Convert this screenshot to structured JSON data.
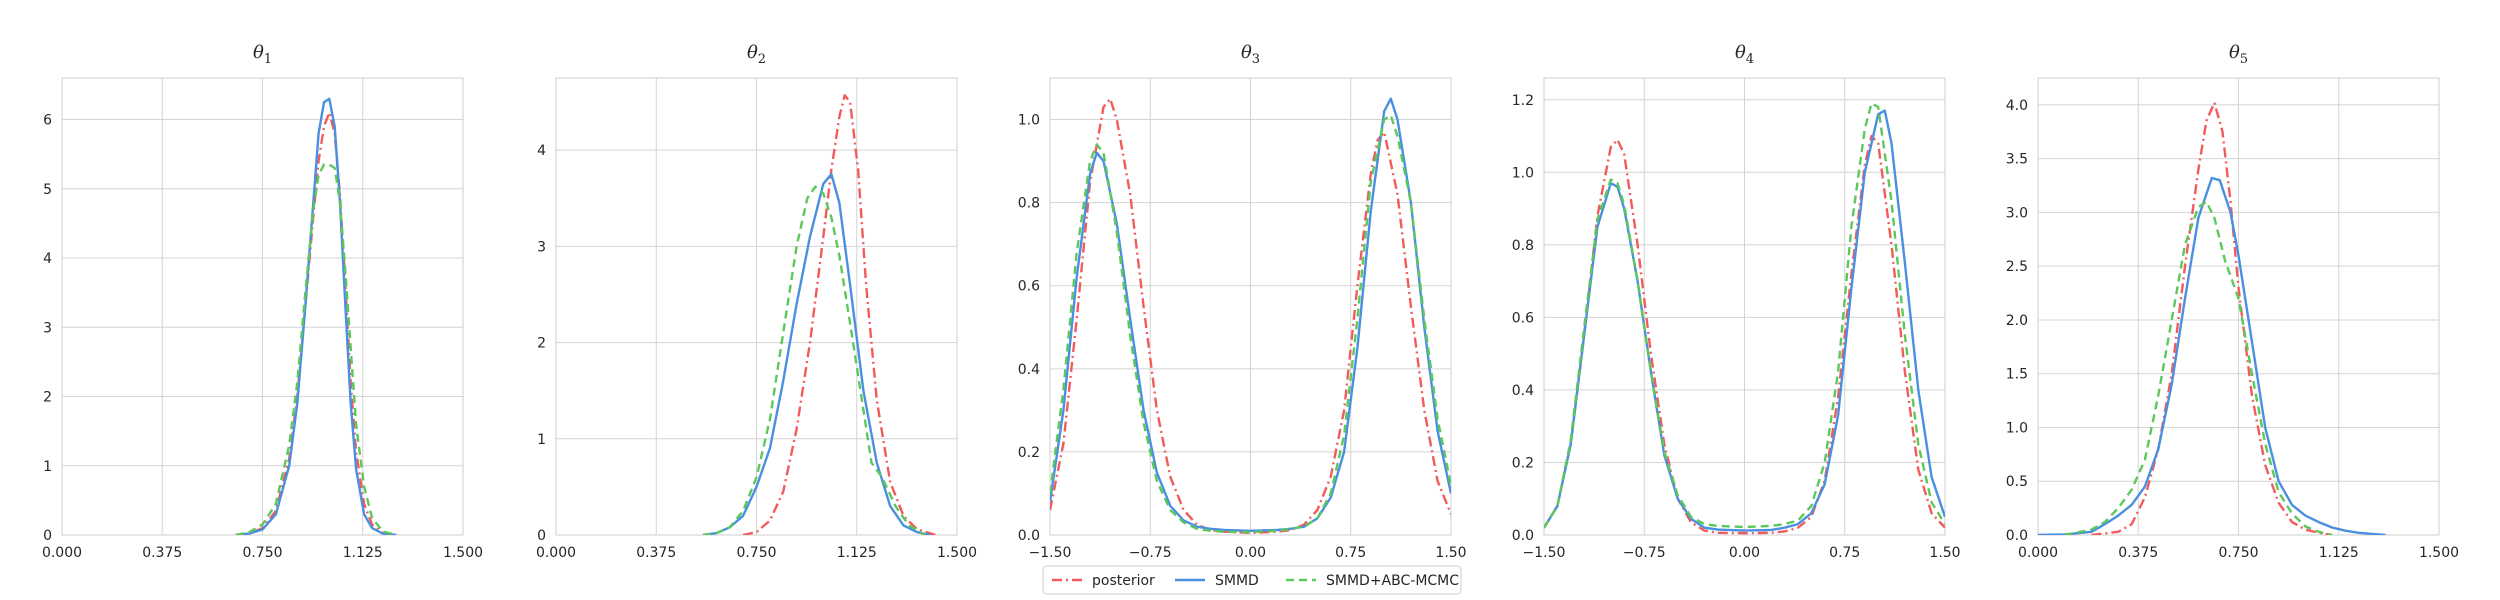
{
  "colors": {
    "posterior": "#f25b5b",
    "smmd": "#4a8fe0",
    "smmd_abc": "#5cc85c",
    "grid": "#d4d4d4",
    "axis": "#cfcfcf"
  },
  "legend": [
    {
      "label": "posterior",
      "style": "dashdot",
      "color": "#f25b5b"
    },
    {
      "label": "SMMD",
      "style": "solid",
      "color": "#4a8fe0"
    },
    {
      "label": "SMMD+ABC-MCMC",
      "style": "dashed",
      "color": "#5cc85c"
    }
  ],
  "chart_data": [
    {
      "type": "line",
      "title": "θ1",
      "xticks": [
        "0.000",
        "0.375",
        "0.750",
        "1.125",
        "1.500"
      ],
      "yticks": [
        "0",
        "1",
        "2",
        "3",
        "4",
        "5",
        "6"
      ],
      "xlim": [
        0,
        1.5
      ],
      "ylim": [
        0,
        6.6
      ],
      "series": [
        {
          "name": "posterior",
          "x": [
            0.65,
            0.7,
            0.75,
            0.8,
            0.85,
            0.88,
            0.91,
            0.94,
            0.96,
            0.98,
            1.0,
            1.02,
            1.04,
            1.06,
            1.08,
            1.1,
            1.13,
            1.16,
            1.2,
            1.25
          ],
          "y": [
            0,
            0.02,
            0.1,
            0.35,
            1.1,
            2.0,
            3.3,
            4.6,
            5.4,
            5.9,
            6.1,
            5.8,
            4.9,
            3.6,
            2.2,
            1.2,
            0.45,
            0.15,
            0.03,
            0
          ]
        },
        {
          "name": "SMMD",
          "x": [
            0.65,
            0.7,
            0.75,
            0.8,
            0.85,
            0.88,
            0.91,
            0.94,
            0.96,
            0.98,
            1.0,
            1.02,
            1.04,
            1.06,
            1.08,
            1.1,
            1.13,
            1.16,
            1.2,
            1.25
          ],
          "y": [
            0,
            0.02,
            0.08,
            0.3,
            1.0,
            1.9,
            3.3,
            4.8,
            5.8,
            6.25,
            6.3,
            5.9,
            4.8,
            3.3,
            1.9,
            0.95,
            0.3,
            0.1,
            0.02,
            0
          ]
        },
        {
          "name": "SMMD+ABC-MCMC",
          "x": [
            0.65,
            0.7,
            0.75,
            0.8,
            0.85,
            0.88,
            0.91,
            0.94,
            0.96,
            0.98,
            1.0,
            1.02,
            1.04,
            1.06,
            1.08,
            1.1,
            1.13,
            1.16,
            1.2,
            1.25
          ],
          "y": [
            0,
            0.04,
            0.15,
            0.45,
            1.3,
            2.2,
            3.5,
            4.7,
            5.2,
            5.35,
            5.35,
            5.3,
            4.8,
            3.8,
            2.7,
            1.6,
            0.7,
            0.25,
            0.05,
            0
          ]
        }
      ]
    },
    {
      "type": "line",
      "title": "θ2",
      "xticks": [
        "0.000",
        "0.375",
        "0.750",
        "1.125",
        "1.500"
      ],
      "yticks": [
        "0",
        "1",
        "2",
        "3",
        "4"
      ],
      "xlim": [
        0,
        1.5
      ],
      "ylim": [
        0,
        4.75
      ],
      "series": [
        {
          "name": "posterior",
          "x": [
            0.7,
            0.75,
            0.8,
            0.85,
            0.9,
            0.95,
            1.0,
            1.03,
            1.06,
            1.08,
            1.1,
            1.13,
            1.16,
            1.2,
            1.25,
            1.3,
            1.35,
            1.42
          ],
          "y": [
            0,
            0.03,
            0.15,
            0.45,
            1.1,
            2.0,
            3.1,
            3.8,
            4.35,
            4.57,
            4.5,
            3.8,
            2.6,
            1.4,
            0.55,
            0.2,
            0.06,
            0
          ]
        },
        {
          "name": "SMMD",
          "x": [
            0.55,
            0.6,
            0.65,
            0.7,
            0.75,
            0.8,
            0.85,
            0.9,
            0.95,
            1.0,
            1.03,
            1.06,
            1.1,
            1.15,
            1.2,
            1.25,
            1.3,
            1.35,
            1.4
          ],
          "y": [
            0,
            0.02,
            0.08,
            0.2,
            0.5,
            0.9,
            1.6,
            2.4,
            3.1,
            3.65,
            3.75,
            3.45,
            2.6,
            1.5,
            0.75,
            0.3,
            0.1,
            0.03,
            0
          ]
        },
        {
          "name": "SMMD+ABC-MCMC",
          "x": [
            0.55,
            0.6,
            0.65,
            0.7,
            0.75,
            0.8,
            0.85,
            0.9,
            0.94,
            0.97,
            1.0,
            1.03,
            1.06,
            1.1,
            1.15,
            1.18,
            1.22,
            1.27,
            1.32,
            1.38
          ],
          "y": [
            0,
            0.02,
            0.08,
            0.25,
            0.6,
            1.2,
            2.1,
            3.0,
            3.5,
            3.62,
            3.55,
            3.3,
            2.9,
            2.2,
            1.3,
            0.75,
            0.6,
            0.3,
            0.1,
            0
          ]
        }
      ]
    },
    {
      "type": "line",
      "title": "θ3",
      "xticks": [
        "−1.50",
        "−0.75",
        "0.00",
        "0.75",
        "1.50"
      ],
      "yticks": [
        "0.0",
        "0.2",
        "0.4",
        "0.6",
        "0.8",
        "1.0"
      ],
      "xlim": [
        -1.5,
        1.5
      ],
      "ylim": [
        0,
        1.1
      ],
      "series": [
        {
          "name": "posterior",
          "x": [
            -1.5,
            -1.4,
            -1.3,
            -1.2,
            -1.1,
            -1.05,
            -1.0,
            -0.9,
            -0.8,
            -0.7,
            -0.6,
            -0.5,
            -0.4,
            -0.3,
            -0.2,
            0.0,
            0.2,
            0.3,
            0.4,
            0.5,
            0.6,
            0.7,
            0.8,
            0.9,
            0.95,
            1.0,
            1.1,
            1.2,
            1.3,
            1.4,
            1.5
          ],
          "y": [
            0.06,
            0.22,
            0.52,
            0.85,
            1.03,
            1.05,
            1.0,
            0.82,
            0.55,
            0.3,
            0.14,
            0.06,
            0.025,
            0.012,
            0.008,
            0.005,
            0.008,
            0.012,
            0.025,
            0.06,
            0.14,
            0.3,
            0.6,
            0.87,
            0.95,
            0.97,
            0.82,
            0.55,
            0.3,
            0.13,
            0.05
          ]
        },
        {
          "name": "SMMD",
          "x": [
            -1.5,
            -1.4,
            -1.3,
            -1.2,
            -1.15,
            -1.1,
            -1.0,
            -0.9,
            -0.8,
            -0.7,
            -0.6,
            -0.5,
            -0.4,
            -0.3,
            -0.2,
            0.0,
            0.2,
            0.3,
            0.4,
            0.5,
            0.6,
            0.7,
            0.8,
            0.9,
            1.0,
            1.05,
            1.1,
            1.2,
            1.3,
            1.4,
            1.5
          ],
          "y": [
            0.08,
            0.3,
            0.62,
            0.87,
            0.92,
            0.9,
            0.75,
            0.52,
            0.3,
            0.15,
            0.07,
            0.035,
            0.02,
            0.015,
            0.012,
            0.01,
            0.012,
            0.015,
            0.02,
            0.04,
            0.09,
            0.2,
            0.45,
            0.78,
            1.02,
            1.05,
            1.0,
            0.8,
            0.5,
            0.25,
            0.1
          ]
        },
        {
          "name": "SMMD+ABC-MCMC",
          "x": [
            -1.5,
            -1.4,
            -1.3,
            -1.2,
            -1.15,
            -1.1,
            -1.0,
            -0.9,
            -0.8,
            -0.7,
            -0.6,
            -0.5,
            -0.4,
            -0.3,
            -0.2,
            0.0,
            0.2,
            0.3,
            0.4,
            0.5,
            0.6,
            0.7,
            0.8,
            0.9,
            1.0,
            1.05,
            1.1,
            1.2,
            1.3,
            1.4,
            1.5
          ],
          "y": [
            0.1,
            0.35,
            0.68,
            0.9,
            0.94,
            0.92,
            0.73,
            0.48,
            0.27,
            0.13,
            0.06,
            0.03,
            0.015,
            0.01,
            0.008,
            0.007,
            0.01,
            0.015,
            0.02,
            0.04,
            0.1,
            0.24,
            0.52,
            0.85,
            1.0,
            1.01,
            0.96,
            0.8,
            0.52,
            0.28,
            0.12
          ]
        }
      ]
    },
    {
      "type": "line",
      "title": "θ4",
      "xticks": [
        "−1.50",
        "−0.75",
        "0.00",
        "0.75",
        "1.50"
      ],
      "yticks": [
        "0.0",
        "0.2",
        "0.4",
        "0.6",
        "0.8",
        "1.0",
        "1.2"
      ],
      "xlim": [
        -1.5,
        1.5
      ],
      "ylim": [
        0,
        1.26
      ],
      "series": [
        {
          "name": "posterior",
          "x": [
            -1.5,
            -1.4,
            -1.3,
            -1.2,
            -1.1,
            -1.0,
            -0.95,
            -0.9,
            -0.8,
            -0.7,
            -0.6,
            -0.5,
            -0.4,
            -0.3,
            -0.2,
            0.0,
            0.2,
            0.3,
            0.4,
            0.5,
            0.6,
            0.7,
            0.8,
            0.9,
            0.95,
            1.0,
            1.1,
            1.2,
            1.3,
            1.4,
            1.5
          ],
          "y": [
            0.02,
            0.08,
            0.25,
            0.55,
            0.88,
            1.07,
            1.09,
            1.05,
            0.8,
            0.5,
            0.25,
            0.1,
            0.035,
            0.012,
            0.006,
            0.005,
            0.006,
            0.01,
            0.02,
            0.05,
            0.15,
            0.38,
            0.72,
            1.02,
            1.1,
            1.08,
            0.8,
            0.45,
            0.18,
            0.06,
            0.02
          ]
        },
        {
          "name": "SMMD",
          "x": [
            -1.5,
            -1.4,
            -1.3,
            -1.2,
            -1.1,
            -1.0,
            -0.95,
            -0.9,
            -0.8,
            -0.7,
            -0.6,
            -0.5,
            -0.4,
            -0.3,
            -0.2,
            0.0,
            0.2,
            0.3,
            0.4,
            0.5,
            0.6,
            0.7,
            0.8,
            0.9,
            1.0,
            1.05,
            1.1,
            1.2,
            1.3,
            1.4,
            1.5
          ],
          "y": [
            0.02,
            0.08,
            0.25,
            0.55,
            0.85,
            0.97,
            0.96,
            0.9,
            0.7,
            0.45,
            0.22,
            0.1,
            0.045,
            0.02,
            0.015,
            0.012,
            0.014,
            0.02,
            0.03,
            0.06,
            0.14,
            0.33,
            0.68,
            1.0,
            1.16,
            1.17,
            1.08,
            0.75,
            0.4,
            0.16,
            0.05
          ]
        },
        {
          "name": "SMMD+ABC-MCMC",
          "x": [
            -1.5,
            -1.4,
            -1.3,
            -1.2,
            -1.1,
            -1.0,
            -0.95,
            -0.9,
            -0.8,
            -0.7,
            -0.6,
            -0.5,
            -0.4,
            -0.3,
            -0.2,
            0.0,
            0.2,
            0.3,
            0.4,
            0.5,
            0.6,
            0.7,
            0.8,
            0.9,
            0.95,
            1.0,
            1.1,
            1.2,
            1.3,
            1.4,
            1.5
          ],
          "y": [
            0.02,
            0.08,
            0.26,
            0.57,
            0.87,
            0.98,
            0.97,
            0.91,
            0.7,
            0.45,
            0.23,
            0.11,
            0.05,
            0.03,
            0.025,
            0.022,
            0.025,
            0.03,
            0.04,
            0.08,
            0.2,
            0.45,
            0.85,
            1.12,
            1.19,
            1.18,
            0.92,
            0.55,
            0.25,
            0.09,
            0.03
          ]
        }
      ]
    },
    {
      "type": "line",
      "title": "θ5",
      "xticks": [
        "0.000",
        "0.375",
        "0.750",
        "1.125",
        "1.500"
      ],
      "yticks": [
        "0.0",
        "0.5",
        "1.0",
        "1.5",
        "2.0",
        "2.5",
        "3.0",
        "3.5",
        "4.0"
      ],
      "xlim": [
        0,
        1.5
      ],
      "ylim": [
        0,
        4.25
      ],
      "series": [
        {
          "name": "posterior",
          "x": [
            0.2,
            0.3,
            0.35,
            0.4,
            0.45,
            0.5,
            0.55,
            0.6,
            0.63,
            0.66,
            0.69,
            0.72,
            0.75,
            0.8,
            0.85,
            0.9,
            0.95,
            1.0,
            1.05,
            1.1
          ],
          "y": [
            0,
            0.03,
            0.1,
            0.35,
            0.8,
            1.5,
            2.5,
            3.4,
            3.85,
            4.02,
            3.75,
            3.1,
            2.3,
            1.3,
            0.65,
            0.3,
            0.12,
            0.05,
            0.02,
            0
          ]
        },
        {
          "name": "SMMD",
          "x": [
            0.0,
            0.1,
            0.2,
            0.25,
            0.3,
            0.35,
            0.4,
            0.45,
            0.5,
            0.55,
            0.6,
            0.65,
            0.68,
            0.72,
            0.75,
            0.8,
            0.85,
            0.9,
            0.95,
            1.0,
            1.05,
            1.1,
            1.15,
            1.2,
            1.25,
            1.3
          ],
          "y": [
            0,
            0.005,
            0.03,
            0.1,
            0.18,
            0.28,
            0.45,
            0.8,
            1.4,
            2.2,
            2.95,
            3.32,
            3.3,
            3.0,
            2.6,
            1.8,
            1.0,
            0.5,
            0.28,
            0.18,
            0.12,
            0.07,
            0.04,
            0.02,
            0.01,
            0
          ]
        },
        {
          "name": "SMMD+ABC-MCMC",
          "x": [
            0.1,
            0.2,
            0.25,
            0.3,
            0.35,
            0.4,
            0.45,
            0.5,
            0.55,
            0.6,
            0.63,
            0.66,
            0.7,
            0.75,
            0.8,
            0.85,
            0.9,
            0.95,
            1.0,
            1.05,
            1.1
          ],
          "y": [
            0,
            0.05,
            0.12,
            0.25,
            0.42,
            0.7,
            1.3,
            2.0,
            2.7,
            3.05,
            3.1,
            2.95,
            2.55,
            2.2,
            1.5,
            0.85,
            0.4,
            0.2,
            0.08,
            0.03,
            0
          ]
        }
      ]
    }
  ]
}
